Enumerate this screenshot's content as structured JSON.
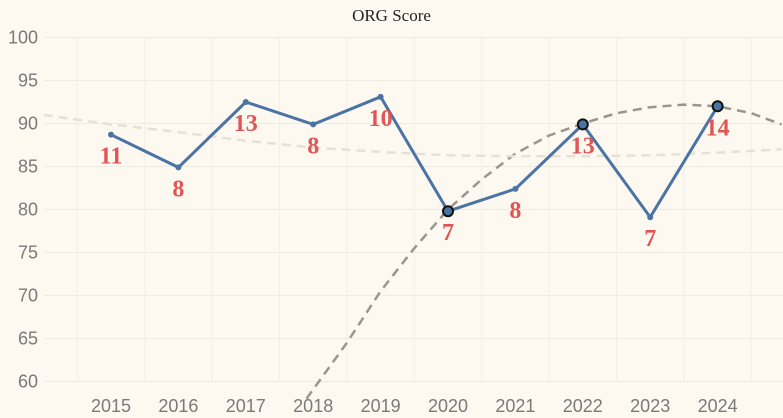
{
  "chart_data": {
    "type": "line",
    "title": "ORG Score",
    "xlabel": "",
    "ylabel": "",
    "x": [
      "2015",
      "2016",
      "2017",
      "2018",
      "2019",
      "2020",
      "2021",
      "2022",
      "2023",
      "2024"
    ],
    "series": [
      {
        "values": [
          88.7,
          84.9,
          92.5,
          89.9,
          93.1,
          79.8,
          82.4,
          89.9,
          79.1,
          92.0
        ],
        "data_labels": [
          "11",
          "8",
          "13",
          "8",
          "10",
          "7",
          "8",
          "13",
          "7",
          "14"
        ],
        "highlighted_points": [
          "2020",
          "2022",
          "2024"
        ],
        "color": "#4a74a4"
      }
    ],
    "ylim": [
      58,
      101
    ],
    "yticks": [
      60,
      65,
      70,
      75,
      80,
      85,
      90,
      95,
      100
    ],
    "grid": true,
    "trend_lines": [
      {
        "style": "dashed",
        "color": "#9a958e",
        "points": [
          [
            2017.9,
            58
          ],
          [
            2018.5,
            64.5
          ],
          [
            2019.0,
            70.5
          ],
          [
            2019.5,
            75.5
          ],
          [
            2020.0,
            80.0
          ],
          [
            2020.5,
            83.5
          ],
          [
            2021.0,
            86.5
          ],
          [
            2021.5,
            88.6
          ],
          [
            2022.0,
            90.0
          ],
          [
            2022.5,
            91.2
          ],
          [
            2023.0,
            91.9
          ],
          [
            2023.5,
            92.2
          ],
          [
            2024.0,
            92.0
          ],
          [
            2024.5,
            91.2
          ],
          [
            2024.95,
            89.9
          ]
        ]
      },
      {
        "style": "dashed",
        "color": "#e6e1d8",
        "points": [
          [
            2014.0,
            91.0
          ],
          [
            2015.0,
            89.9
          ],
          [
            2016.0,
            89.0
          ],
          [
            2017.0,
            88.0
          ],
          [
            2018.0,
            87.2
          ],
          [
            2019.0,
            86.7
          ],
          [
            2020.0,
            86.3
          ],
          [
            2021.0,
            86.2
          ],
          [
            2022.0,
            86.2
          ],
          [
            2023.0,
            86.3
          ],
          [
            2024.0,
            86.6
          ],
          [
            2024.95,
            87.0
          ]
        ]
      }
    ]
  }
}
